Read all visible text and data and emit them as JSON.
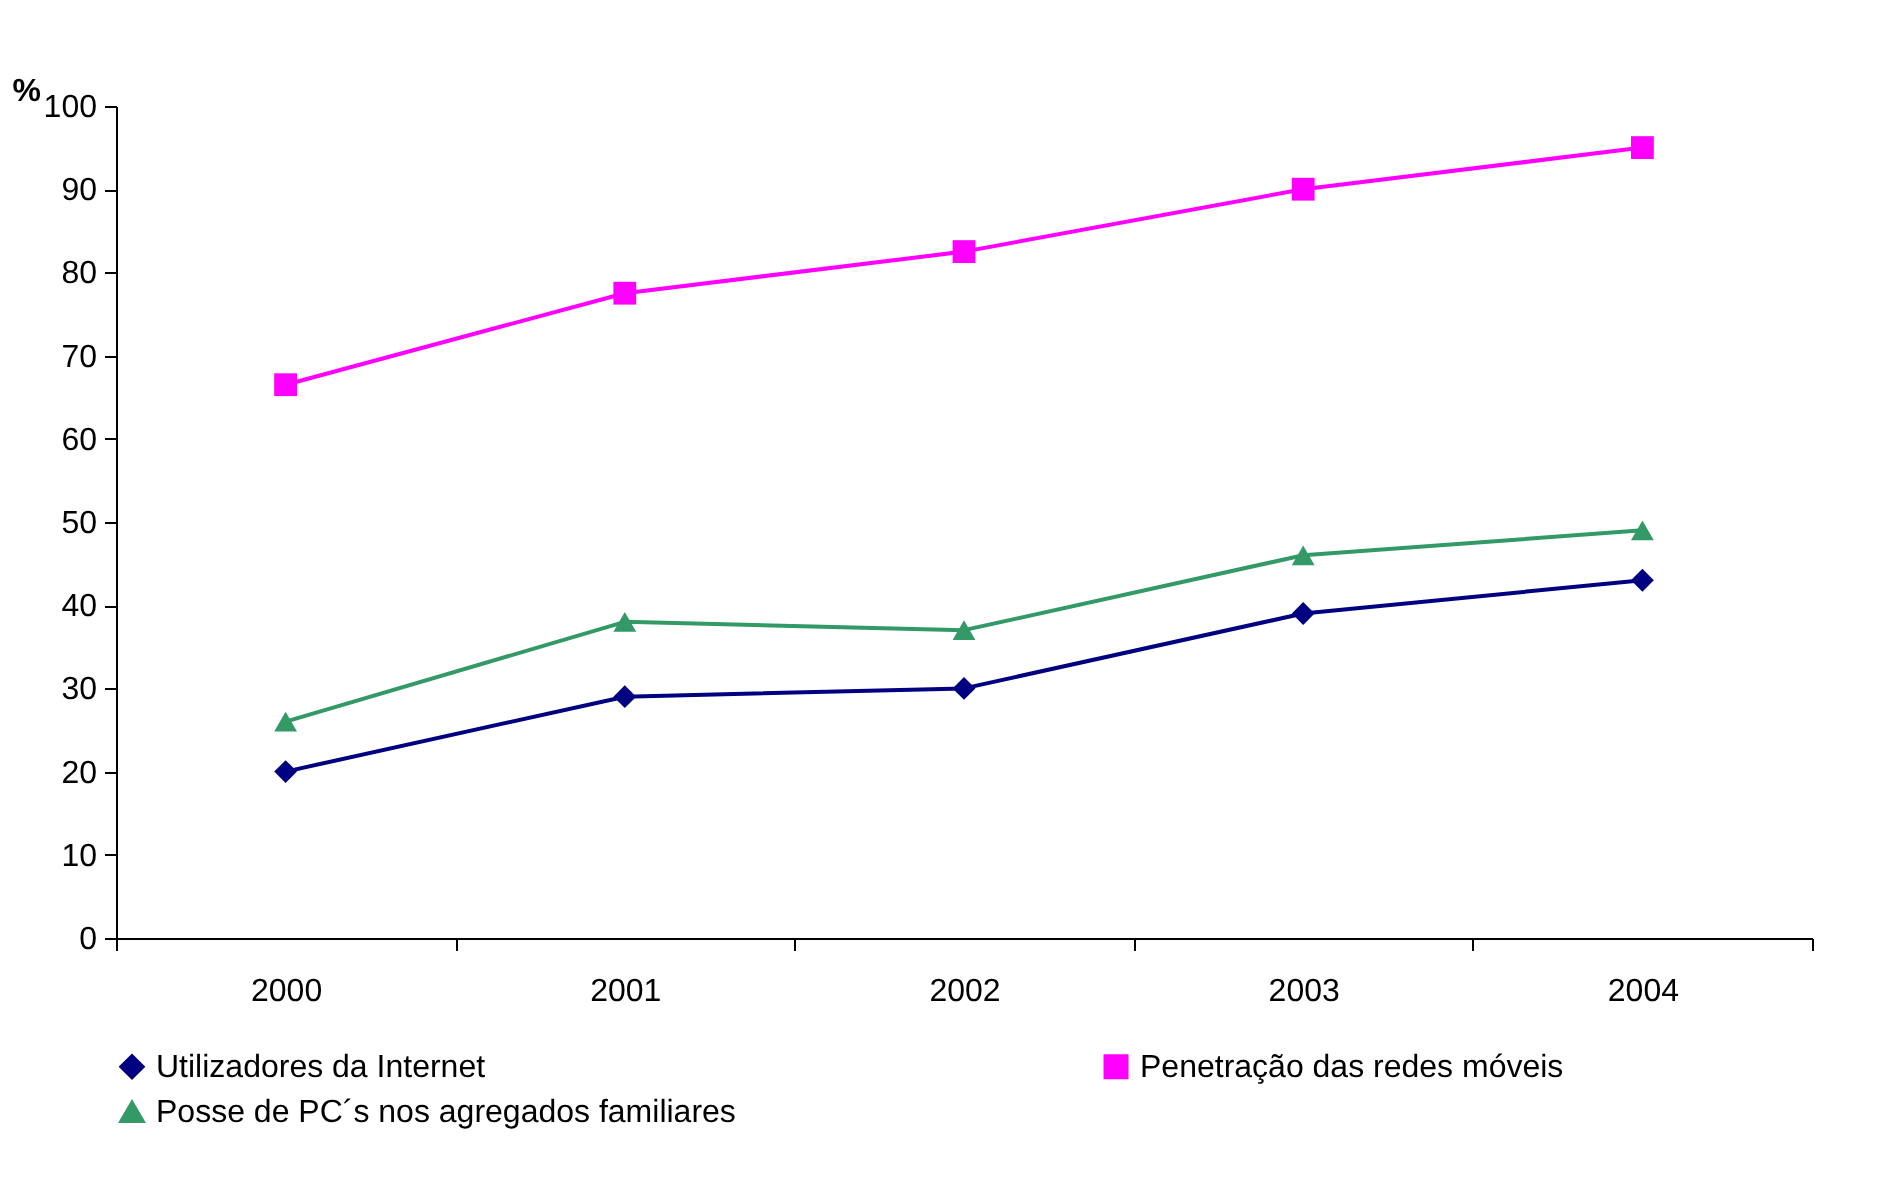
{
  "chart_data": {
    "type": "line",
    "ylabel": "%",
    "categories": [
      "2000",
      "2001",
      "2002",
      "2003",
      "2004"
    ],
    "series": [
      {
        "name": "Utilizadores da Internet",
        "color": "#000080",
        "marker": "diamond",
        "values": [
          20,
          29,
          30,
          39,
          43
        ]
      },
      {
        "name": "Penetração das redes móveis",
        "color": "#ff00ff",
        "marker": "square",
        "values": [
          66.5,
          77.5,
          82.5,
          90,
          95
        ]
      },
      {
        "name": "Posse de PC´s nos agregados familiares",
        "color": "#339966",
        "marker": "triangle",
        "values": [
          26,
          38,
          37,
          46,
          49
        ]
      }
    ],
    "ylim": [
      0,
      100
    ],
    "yticks": [
      0,
      10,
      20,
      30,
      40,
      50,
      60,
      70,
      80,
      90,
      100
    ],
    "grid": false,
    "legend": "bottom",
    "line_style": "solid"
  }
}
